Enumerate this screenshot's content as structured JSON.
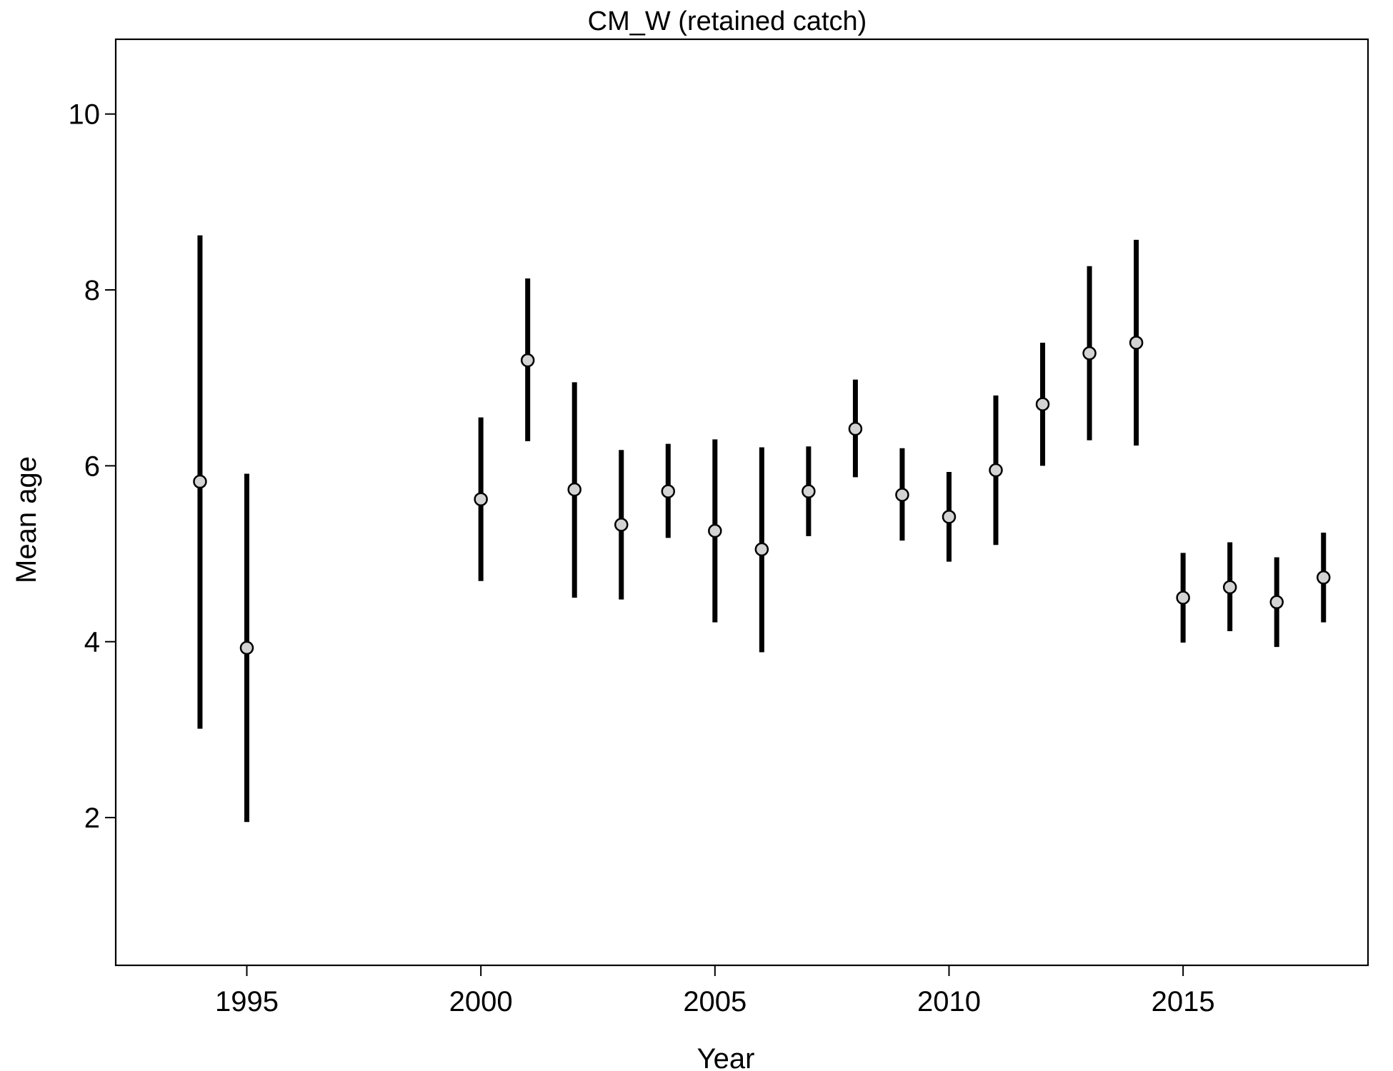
{
  "chart_data": {
    "type": "scatter",
    "title": "CM_W (retained catch)",
    "xlabel": "Year",
    "ylabel": "Mean age",
    "xlim": [
      1992.2,
      2018.95
    ],
    "ylim": [
      0.32,
      10.85
    ],
    "x_ticks": [
      1995,
      2000,
      2005,
      2010,
      2015
    ],
    "y_ticks": [
      2,
      4,
      6,
      8,
      10
    ],
    "grid": false,
    "legend": "none",
    "colors": {
      "point_fill": "#d3d3d3",
      "point_stroke": "#000000",
      "interval": "#000000",
      "axes": "#000000",
      "background": "#ffffff"
    },
    "series": [
      {
        "points": [
          {
            "x": 1994,
            "y": 5.82,
            "lo": 3.01,
            "hi": 8.62
          },
          {
            "x": 1995,
            "y": 3.93,
            "lo": 1.95,
            "hi": 5.91
          },
          {
            "x": 2000,
            "y": 5.62,
            "lo": 4.69,
            "hi": 6.55
          },
          {
            "x": 2001,
            "y": 7.2,
            "lo": 6.28,
            "hi": 8.13
          },
          {
            "x": 2002,
            "y": 5.73,
            "lo": 4.5,
            "hi": 6.95
          },
          {
            "x": 2003,
            "y": 5.33,
            "lo": 4.48,
            "hi": 6.18
          },
          {
            "x": 2004,
            "y": 5.71,
            "lo": 5.18,
            "hi": 6.25
          },
          {
            "x": 2005,
            "y": 5.26,
            "lo": 4.22,
            "hi": 6.3
          },
          {
            "x": 2006,
            "y": 5.05,
            "lo": 3.88,
            "hi": 6.21
          },
          {
            "x": 2007,
            "y": 5.71,
            "lo": 5.2,
            "hi": 6.22
          },
          {
            "x": 2008,
            "y": 6.42,
            "lo": 5.87,
            "hi": 6.98
          },
          {
            "x": 2009,
            "y": 5.67,
            "lo": 5.15,
            "hi": 6.2
          },
          {
            "x": 2010,
            "y": 5.42,
            "lo": 4.91,
            "hi": 5.93
          },
          {
            "x": 2011,
            "y": 5.95,
            "lo": 5.1,
            "hi": 6.8
          },
          {
            "x": 2012,
            "y": 6.7,
            "lo": 6.0,
            "hi": 7.4
          },
          {
            "x": 2013,
            "y": 7.28,
            "lo": 6.29,
            "hi": 8.27
          },
          {
            "x": 2014,
            "y": 7.4,
            "lo": 6.23,
            "hi": 8.57
          },
          {
            "x": 2015,
            "y": 4.5,
            "lo": 3.99,
            "hi": 5.01
          },
          {
            "x": 2016,
            "y": 4.62,
            "lo": 4.12,
            "hi": 5.13
          },
          {
            "x": 2017,
            "y": 4.45,
            "lo": 3.94,
            "hi": 4.96
          },
          {
            "x": 2018,
            "y": 4.73,
            "lo": 4.22,
            "hi": 5.24
          }
        ]
      }
    ]
  }
}
